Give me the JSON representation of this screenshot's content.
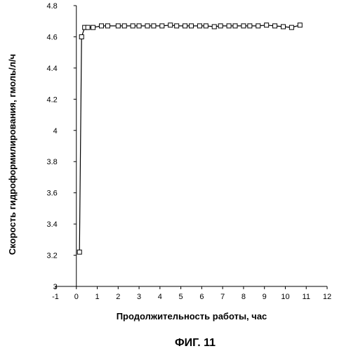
{
  "figure_caption": "ФИГ. 11",
  "chart_data": {
    "type": "line",
    "title": "",
    "xlabel": "Продолжительность работы, час",
    "ylabel": "Скорость гидроформилирования, гмоль/л/ч",
    "xlim": [
      -1,
      12
    ],
    "ylim": [
      3,
      4.8
    ],
    "x_ticks": [
      "-1",
      "0",
      "1",
      "2",
      "3",
      "4",
      "5",
      "6",
      "7",
      "8",
      "9",
      "10",
      "11",
      "12"
    ],
    "y_ticks": [
      "3",
      "3.2",
      "3.4",
      "3.6",
      "3.8",
      "4",
      "4.2",
      "4.4",
      "4.6",
      "4.8"
    ],
    "grid": false,
    "legend": "none",
    "marker": "square-open",
    "line_color": "#000000",
    "series": [
      {
        "x": [
          0.15,
          0.25,
          0.4,
          0.55,
          0.8,
          1.2,
          1.5,
          2.0,
          2.3,
          2.7,
          3.0,
          3.4,
          3.7,
          4.1,
          4.5,
          4.8,
          5.2,
          5.5,
          5.9,
          6.2,
          6.6,
          6.9,
          7.3,
          7.6,
          8.0,
          8.3,
          8.7,
          9.1,
          9.5,
          9.9,
          10.3,
          10.7
        ],
        "y": [
          3.22,
          4.6,
          4.66,
          4.66,
          4.66,
          4.67,
          4.67,
          4.67,
          4.67,
          4.67,
          4.67,
          4.67,
          4.67,
          4.67,
          4.675,
          4.67,
          4.67,
          4.67,
          4.67,
          4.67,
          4.665,
          4.67,
          4.67,
          4.67,
          4.67,
          4.67,
          4.67,
          4.675,
          4.67,
          4.665,
          4.66,
          4.675
        ]
      }
    ]
  }
}
